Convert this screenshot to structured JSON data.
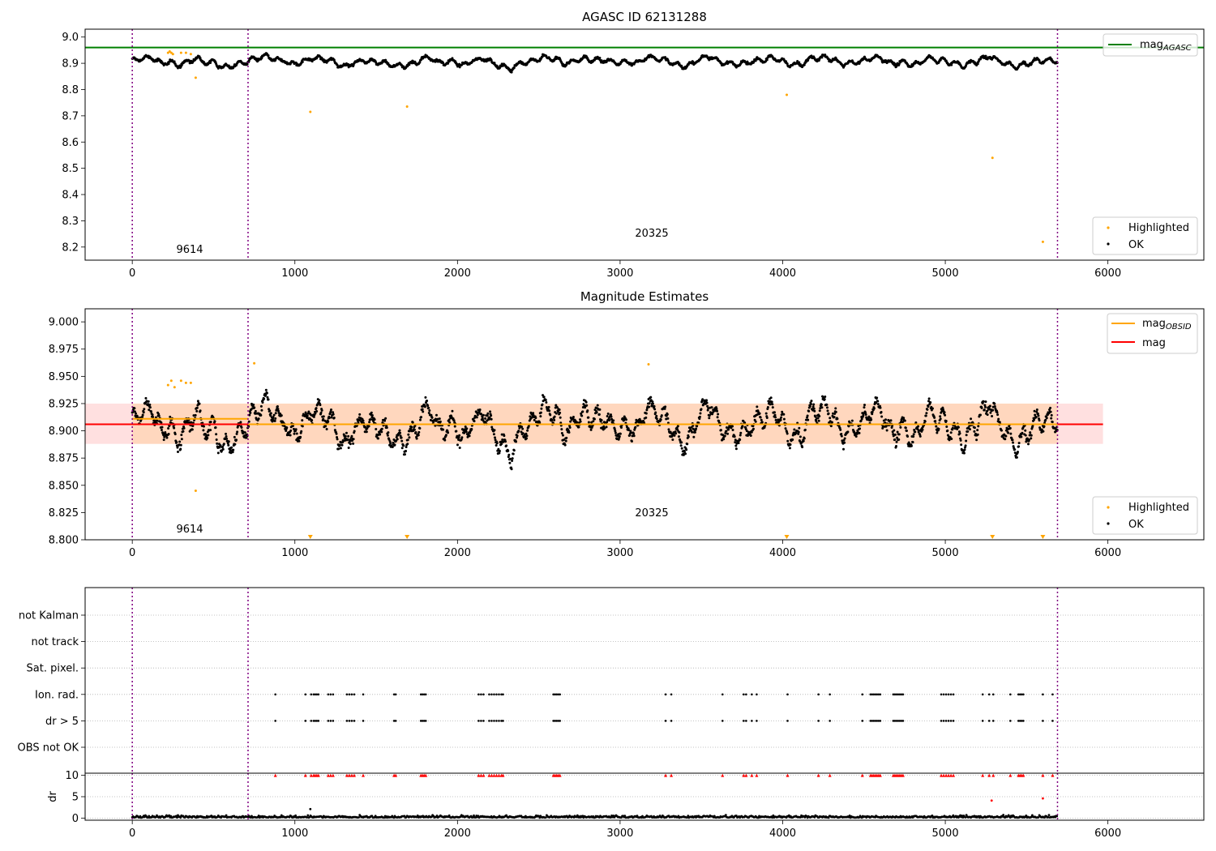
{
  "chart_data": [
    {
      "type": "scatter",
      "title": "AGASC ID 62131288",
      "xlim": [
        -290,
        6590
      ],
      "ylim": [
        8.15,
        9.03
      ],
      "xticks": [
        0,
        1000,
        2000,
        3000,
        4000,
        5000,
        6000
      ],
      "yticks": [
        8.2,
        8.3,
        8.4,
        8.5,
        8.6,
        8.7,
        8.8,
        8.9,
        9.0
      ],
      "ytick_labels": [
        "8.2",
        "8.3",
        "8.4",
        "8.5",
        "8.6",
        "8.7",
        "8.8",
        "8.9",
        "9.0"
      ],
      "hline": {
        "value": 8.96,
        "color": "#008000",
        "label_main": "mag",
        "label_sub": "AGASC"
      },
      "obsid_boundaries": [
        0,
        712,
        5690
      ],
      "obsid_annotations": [
        {
          "label": "9614",
          "x": 356,
          "y": 8.17
        },
        {
          "label": "20325",
          "x": 3200,
          "y": 8.23
        }
      ],
      "series": [
        {
          "name": "Highlighted",
          "color": "#ffa500",
          "x": [
            220,
            230,
            240,
            250,
            300,
            330,
            360,
            390,
            1095,
            1690,
            4025,
            5290,
            5600
          ],
          "y": [
            8.94,
            8.945,
            8.94,
            8.935,
            8.94,
            8.94,
            8.935,
            8.845,
            8.715,
            8.735,
            8.78,
            8.54,
            8.22
          ]
        },
        {
          "name": "OK",
          "color": "#000000",
          "band": {
            "x": [
              0,
              5690
            ],
            "center": 8.907,
            "spread": 0.025
          }
        }
      ],
      "legend_lines": "top-right",
      "legend_points": "bottom-right"
    },
    {
      "type": "scatter",
      "title": "Magnitude Estimates",
      "xlim": [
        -290,
        6590
      ],
      "ylim": [
        8.8,
        9.012
      ],
      "xticks": [
        0,
        1000,
        2000,
        3000,
        4000,
        5000,
        6000
      ],
      "yticks": [
        8.8,
        8.825,
        8.85,
        8.875,
        8.9,
        8.925,
        8.95,
        8.975,
        9.0
      ],
      "ytick_labels": [
        "8.800",
        "8.825",
        "8.850",
        "8.875",
        "8.900",
        "8.925",
        "8.950",
        "8.975",
        "9.000"
      ],
      "mag": {
        "value": 8.906,
        "color": "#ff0000",
        "label": "mag",
        "band_lo": 8.888,
        "band_hi": 8.925,
        "x_end": 5970
      },
      "mag_obsid": [
        {
          "x0": 0,
          "x1": 712,
          "value": 8.911
        },
        {
          "x0": 712,
          "x1": 5690,
          "value": 8.906
        }
      ],
      "mag_obsid_color": "#ffa500",
      "mag_obsid_label_main": "mag",
      "mag_obsid_label_sub": "OBSID",
      "obsid_boundaries": [
        0,
        712,
        5690
      ],
      "obsid_annotations": [
        {
          "label": "9614",
          "x": 356,
          "y": 8.81
        },
        {
          "label": "20325",
          "x": 3200,
          "y": 8.823
        }
      ],
      "series": [
        {
          "name": "Highlighted",
          "color": "#ffa500",
          "x": [
            220,
            240,
            260,
            300,
            330,
            360,
            390,
            750,
            3175
          ],
          "y": [
            8.942,
            8.946,
            8.94,
            8.946,
            8.944,
            8.944,
            8.845,
            8.962,
            8.961
          ],
          "clipped_x": [
            1095,
            1690,
            4025,
            5290,
            5600
          ]
        },
        {
          "name": "OK",
          "color": "#000000"
        }
      ],
      "legend_lines": "top-right",
      "legend_points": "bottom-right"
    },
    {
      "type": "scatter",
      "title": "",
      "xlim": [
        -290,
        6590
      ],
      "categories": [
        "not Kalman",
        "not track",
        "Sat. pixel.",
        "Ion. rad.",
        "dr > 5",
        "OBS not OK"
      ],
      "flag_times": [
        880,
        1065,
        1100,
        1115,
        1125,
        1135,
        1145,
        1205,
        1220,
        1235,
        1320,
        1335,
        1350,
        1365,
        1420,
        1610,
        1620,
        1775,
        1785,
        1795,
        1805,
        2130,
        2145,
        2160,
        2195,
        2210,
        2225,
        2240,
        2255,
        2270,
        2280,
        2590,
        2600,
        2610,
        2620,
        2630,
        3280,
        3315,
        3630,
        3760,
        3775,
        3810,
        3840,
        4030,
        4220,
        4290,
        4490,
        4540,
        4550,
        4560,
        4570,
        4580,
        4590,
        4600,
        4680,
        4690,
        4700,
        4710,
        4720,
        4730,
        4740,
        4975,
        4990,
        5005,
        5020,
        5035,
        5050,
        5230,
        5270,
        5295,
        5400,
        5450,
        5460,
        5470,
        5480,
        5600,
        5660
      ],
      "flag_rows": [
        "Ion. rad.",
        "dr > 5"
      ],
      "obsid_boundaries": [
        0,
        712,
        5690
      ]
    },
    {
      "type": "scatter",
      "title": "",
      "ylabel": "dr",
      "xlim": [
        -290,
        6590
      ],
      "ylim": [
        -0.5,
        10.5
      ],
      "xticks": [
        0,
        1000,
        2000,
        3000,
        4000,
        5000,
        6000
      ],
      "yticks": [
        0,
        5,
        10
      ],
      "ytick_labels": [
        "0",
        "5",
        "10"
      ],
      "capped_value": 10,
      "capped_color": "#ff0000",
      "extra_points": [
        {
          "x": 1095,
          "y": 2.1
        },
        {
          "x": 5285,
          "y": 4.1
        },
        {
          "x": 5600,
          "y": 4.6
        }
      ],
      "obsid_boundaries": [
        0,
        712,
        5690
      ]
    }
  ],
  "legend": {
    "highlighted": "Highlighted",
    "ok": "OK"
  }
}
